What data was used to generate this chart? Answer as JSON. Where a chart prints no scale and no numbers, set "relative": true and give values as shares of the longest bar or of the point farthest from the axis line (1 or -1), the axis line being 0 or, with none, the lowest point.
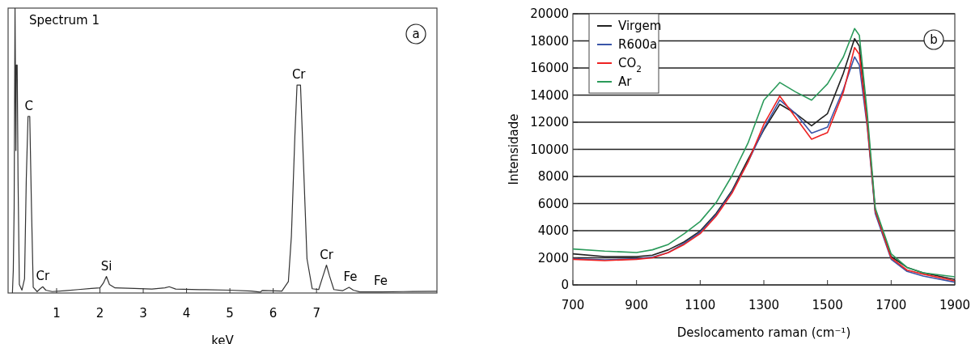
{
  "chart_data": [
    {
      "type": "line",
      "title": "Spectrum 1",
      "xlabel": "keV",
      "relative": true,
      "tick_labels": "x",
      "grid": false,
      "legend": false,
      "marker": "none",
      "xlim": [
        -0.12,
        9.78
      ],
      "xticks": [
        1,
        2,
        3,
        4,
        5,
        6,
        7
      ],
      "x": [
        -0.02,
        0.0,
        0.02,
        0.04,
        0.06,
        0.07,
        0.09,
        0.11,
        0.14,
        0.2,
        0.26,
        0.3,
        0.34,
        0.38,
        0.42,
        0.46,
        0.55,
        0.62,
        0.68,
        0.75,
        0.9,
        1.2,
        1.5,
        1.8,
        2.0,
        2.08,
        2.15,
        2.22,
        2.35,
        2.8,
        3.2,
        3.5,
        3.6,
        3.75,
        4.3,
        5.0,
        5.5,
        5.7,
        5.75,
        6.2,
        6.35,
        6.42,
        6.5,
        6.55,
        6.63,
        6.7,
        6.78,
        6.9,
        7.05,
        7.15,
        7.23,
        7.3,
        7.4,
        7.6,
        7.75,
        7.85,
        8.0,
        8.5,
        9.0,
        9.78
      ],
      "series": [
        {
          "color": "#333333",
          "values": [
            0.0,
            0.08,
            0.3,
            1.0,
            0.5,
            0.8,
            0.8,
            0.4,
            0.03,
            0.01,
            0.05,
            0.4,
            0.62,
            0.62,
            0.3,
            0.02,
            0.005,
            0.015,
            0.022,
            0.01,
            0.005,
            0.008,
            0.012,
            0.016,
            0.018,
            0.035,
            0.058,
            0.03,
            0.018,
            0.016,
            0.014,
            0.018,
            0.022,
            0.014,
            0.012,
            0.01,
            0.007,
            0.003,
            0.009,
            0.007,
            0.04,
            0.2,
            0.55,
            0.73,
            0.73,
            0.45,
            0.12,
            0.015,
            0.012,
            0.06,
            0.098,
            0.06,
            0.012,
            0.008,
            0.02,
            0.01,
            0.004,
            0.004,
            0.005,
            0.006
          ]
        }
      ],
      "annotations": [
        {
          "text": "C",
          "x": 0.36,
          "y": 0.62
        },
        {
          "text": "Cr",
          "x": 0.68,
          "y": 0.022
        },
        {
          "text": "Si",
          "x": 2.15,
          "y": 0.058
        },
        {
          "text": "Cr",
          "x": 6.59,
          "y": 0.73
        },
        {
          "text": "Cr",
          "x": 7.23,
          "y": 0.098
        },
        {
          "text": "Fe",
          "x": 7.78,
          "y": 0.02
        },
        {
          "text": "Fe",
          "x": 8.48,
          "y": 0.005
        },
        "a"
      ]
    },
    {
      "type": "line",
      "xlabel": "Deslocamento raman  (cm⁻¹)",
      "ylabel": "Intensidade",
      "xlim": [
        700,
        1900
      ],
      "ylim": [
        0,
        20000
      ],
      "xticks": [
        700,
        900,
        1100,
        1300,
        1500,
        1700,
        1900
      ],
      "yticks": [
        0,
        2000,
        4000,
        6000,
        8000,
        10000,
        12000,
        14000,
        16000,
        18000,
        20000
      ],
      "grid": "y",
      "legend": "top left",
      "marker": "none",
      "line_style": "solid",
      "x": [
        700,
        800,
        900,
        950,
        1000,
        1050,
        1100,
        1150,
        1200,
        1250,
        1300,
        1350,
        1400,
        1450,
        1500,
        1550,
        1585,
        1600,
        1625,
        1650,
        1700,
        1750,
        1800,
        1900
      ],
      "series": [
        {
          "name": "Virgem",
          "color": "#222222",
          "values": [
            2290,
            2090,
            2090,
            2190,
            2590,
            3180,
            3980,
            5270,
            6960,
            9250,
            11440,
            13330,
            12640,
            11740,
            12640,
            15620,
            18170,
            17610,
            12040,
            5470,
            2090,
            1290,
            900,
            400
          ]
        },
        {
          "name": "R600a",
          "color": "#3a55a8",
          "values": [
            1930,
            1850,
            1930,
            2050,
            2390,
            3080,
            3880,
            5170,
            6870,
            9050,
            11540,
            13630,
            12640,
            11200,
            11640,
            14430,
            16820,
            16220,
            11640,
            5270,
            1890,
            1000,
            660,
            200
          ]
        },
        {
          "name": "CO$_{2}$",
          "color": "#ee2222",
          "values": [
            1890,
            1790,
            1890,
            2000,
            2390,
            2990,
            3780,
            5070,
            6770,
            9050,
            11840,
            13930,
            12340,
            10750,
            11240,
            14230,
            17510,
            17010,
            11840,
            5470,
            1990,
            1090,
            800,
            300
          ]
        },
        {
          "name": "Ar",
          "color": "#2a9a5a",
          "values": [
            2650,
            2490,
            2390,
            2590,
            2990,
            3780,
            4680,
            6070,
            8060,
            10450,
            13630,
            14930,
            14230,
            13630,
            14830,
            16820,
            18910,
            18410,
            12640,
            5670,
            2290,
            1290,
            900,
            600
          ]
        }
      ],
      "annotations": [
        "b"
      ]
    }
  ]
}
